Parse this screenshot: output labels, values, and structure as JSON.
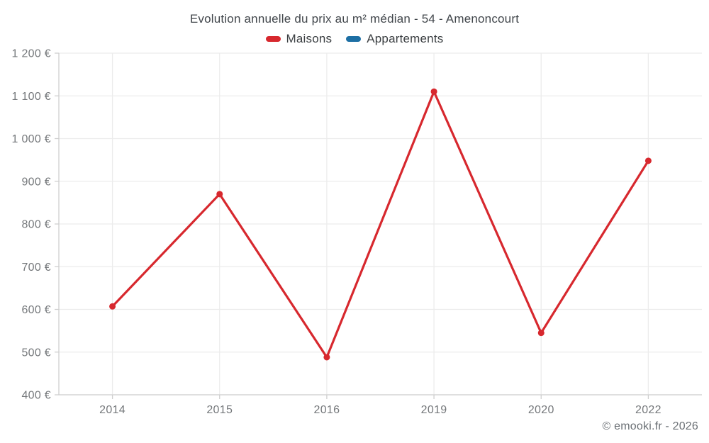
{
  "page": {
    "footer_credit": "© emooki.fr - 2026"
  },
  "chart_data": {
    "type": "line",
    "title": "Evolution annuelle du prix au m² médian - 54 - Amenoncourt",
    "categories": [
      "2014",
      "2015",
      "2016",
      "2019",
      "2020",
      "2022"
    ],
    "series": [
      {
        "name": "Maisons",
        "color": "#d7282e",
        "values": [
          607,
          870,
          488,
          1110,
          545,
          948
        ]
      },
      {
        "name": "Appartements",
        "color": "#1d6fa4",
        "values": []
      }
    ],
    "ylim": [
      400,
      1200
    ],
    "ytick_step": 100,
    "ytick_labels": [
      "400 €",
      "500 €",
      "600 €",
      "700 €",
      "800 €",
      "900 €",
      "1 000 €",
      "1 100 €",
      "1 200 €"
    ],
    "grid": true,
    "legend_position": "top",
    "currency": "€",
    "colors": {
      "gridline": "#ececec",
      "axis": "#cfcfcf",
      "tick_text": "#75787b"
    }
  }
}
